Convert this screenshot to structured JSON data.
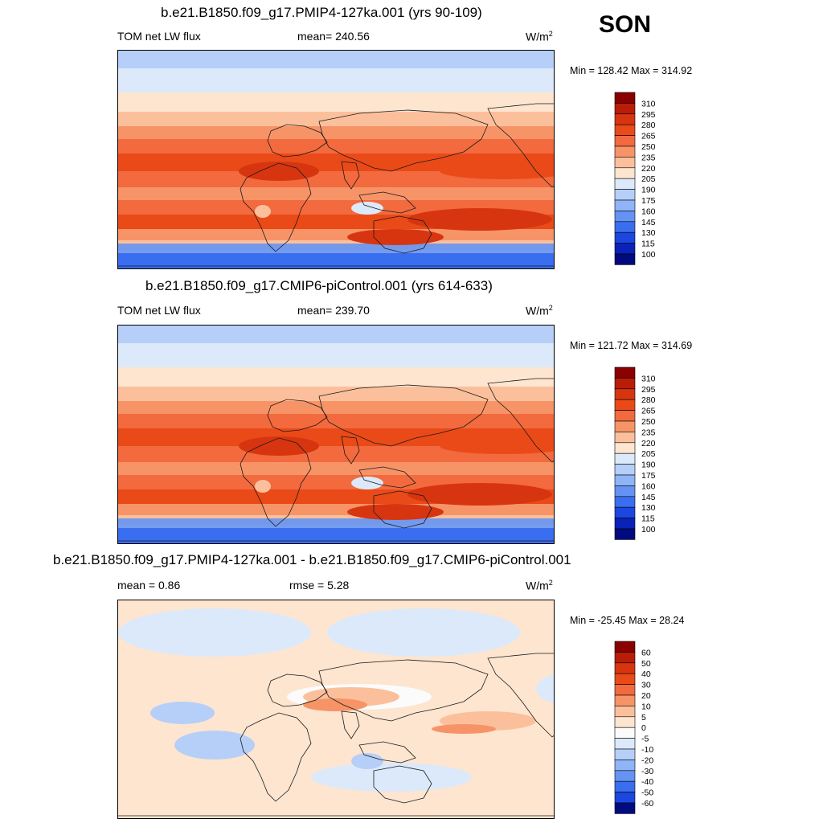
{
  "season": "SON",
  "panels": [
    {
      "title": "b.e21.B1850.f09_g17.PMIP4-127ka.001 (yrs 90-109)",
      "left_label": "TOM net LW flux",
      "center_label": "mean= 240.56",
      "units": "W/m",
      "units_exp": "2",
      "minmax": "Min = 128.42 Max = 314.92",
      "colorbar": {
        "labels": [
          "310",
          "295",
          "280",
          "265",
          "250",
          "235",
          "220",
          "205",
          "190",
          "175",
          "160",
          "145",
          "130",
          "115",
          "100"
        ],
        "colors": [
          "#8b0000",
          "#b81d08",
          "#d73510",
          "#ea4a18",
          "#f26a3e",
          "#f79467",
          "#fbc09b",
          "#fde5d0",
          "#dce9fb",
          "#b6cff9",
          "#8fb4f7",
          "#6593f3",
          "#3a6ef0",
          "#1b47e0",
          "#0b22b8",
          "#020a80"
        ]
      },
      "map_type": "absolute"
    },
    {
      "title": "b.e21.B1850.f09_g17.CMIP6-piControl.001 (yrs 614-633)",
      "left_label": "TOM net LW flux",
      "center_label": "mean= 239.70",
      "units": "W/m",
      "units_exp": "2",
      "minmax": "Min = 121.72 Max = 314.69",
      "colorbar": {
        "labels": [
          "310",
          "295",
          "280",
          "265",
          "250",
          "235",
          "220",
          "205",
          "190",
          "175",
          "160",
          "145",
          "130",
          "115",
          "100"
        ],
        "colors": [
          "#8b0000",
          "#b81d08",
          "#d73510",
          "#ea4a18",
          "#f26a3e",
          "#f79467",
          "#fbc09b",
          "#fde5d0",
          "#dce9fb",
          "#b6cff9",
          "#8fb4f7",
          "#6593f3",
          "#3a6ef0",
          "#1b47e0",
          "#0b22b8",
          "#020a80"
        ]
      },
      "map_type": "absolute"
    },
    {
      "title": "b.e21.B1850.f09_g17.PMIP4-127ka.001 - b.e21.B1850.f09_g17.CMIP6-piControl.001",
      "left_label": "mean =   0.86",
      "center_label": "rmse =   5.28",
      "units": "W/m",
      "units_exp": "2",
      "minmax": "Min = -25.45 Max =  28.24",
      "colorbar": {
        "labels": [
          "60",
          "50",
          "40",
          "30",
          "20",
          "10",
          "5",
          "0",
          "-5",
          "-10",
          "-20",
          "-30",
          "-40",
          "-50",
          "-60"
        ],
        "colors": [
          "#8b0000",
          "#b81d08",
          "#d73510",
          "#ea4a18",
          "#f26a3e",
          "#f79467",
          "#fbc09b",
          "#fde5d0",
          "#fbfbfb",
          "#dce9fb",
          "#b6cff9",
          "#8fb4f7",
          "#6593f3",
          "#3a6ef0",
          "#1b47e0",
          "#020a80"
        ]
      },
      "map_type": "difference"
    }
  ]
}
